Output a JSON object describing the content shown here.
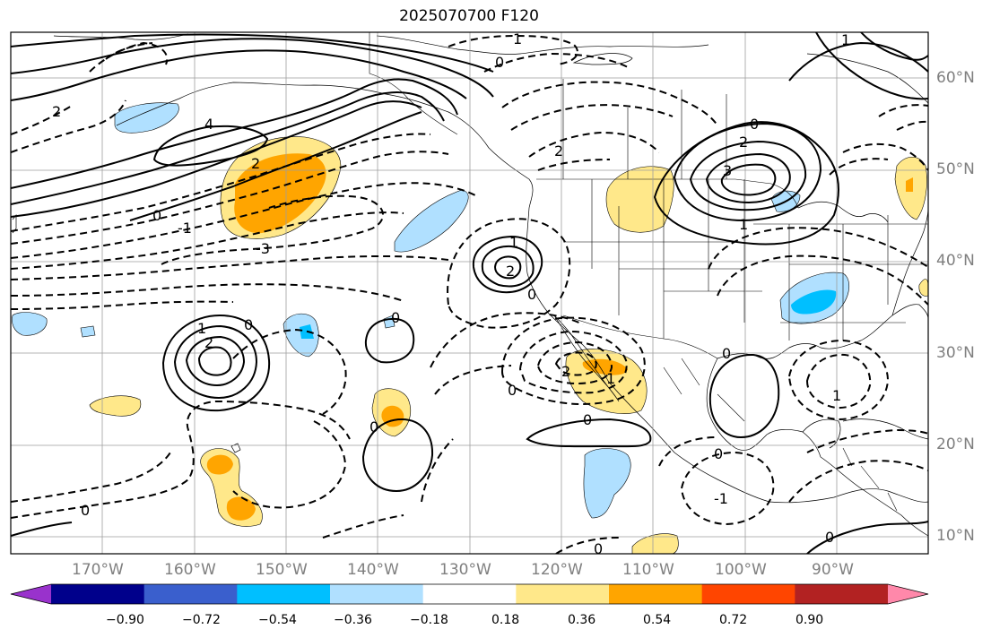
{
  "title": "2025070700 F120",
  "lon_labels": [
    "170°W",
    "160°W",
    "150°W",
    "140°W",
    "130°W",
    "120°W",
    "110°W",
    "100°W",
    "90°W"
  ],
  "lat_labels": [
    "60°N",
    "50°N",
    "40°N",
    "30°N",
    "20°N",
    "10°N"
  ],
  "colorbar": {
    "tick_labels": [
      "−0.90",
      "−0.72",
      "−0.54",
      "−0.36",
      "−0.18",
      "0.18",
      "0.36",
      "0.54",
      "0.72",
      "0.90"
    ],
    "colors": [
      "#9932cc",
      "#00008b",
      "#3a5fcd",
      "#00bfff",
      "#b0e0ff",
      "#ffffff",
      "#ffe88a",
      "#ffa500",
      "#ff4500",
      "#b22222",
      "#ff88aa"
    ]
  },
  "contour_labels": {
    "upper_1": "1",
    "upper_0": "0",
    "aleut_2": "2",
    "aleut_4": "4",
    "jet_2": "2",
    "jet_0": "0",
    "jet_m1": "-1",
    "jet_m3": "-3",
    "bc_2": "2",
    "ne_0": "0",
    "ne_2": "2",
    "ne_3": "3",
    "ne_1": "1",
    "ne_top": "1",
    "low_2": "2",
    "low_1": "1",
    "low_0": "0",
    "hi_2": "2",
    "hi_1": "1",
    "hi_0": "0",
    "mid_0": "0",
    "baja_0": "0",
    "baja_1": "1",
    "baja_2": "2",
    "trop_0": "0",
    "gulf_0": "0",
    "gulf_1": "1",
    "sw_0": "0",
    "mx_0": "0",
    "mx_m1": "-1",
    "mx_0b": "0",
    "mx_0c": "0",
    "far_0": "0"
  }
}
